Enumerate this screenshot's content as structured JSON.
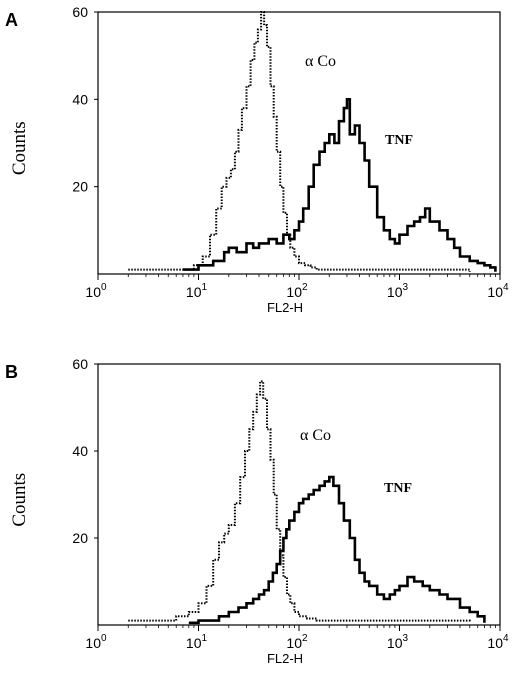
{
  "chart_data": [
    {
      "type": "line",
      "panel_label": "A",
      "xlabel": "FL2-H",
      "ylabel": "Counts",
      "x_scale": "log",
      "xlim": [
        1,
        10000
      ],
      "ylim": [
        0,
        60
      ],
      "x_ticks": [
        {
          "base": "10",
          "exp": "0"
        },
        {
          "base": "10",
          "exp": "1"
        },
        {
          "base": "10",
          "exp": "2"
        },
        {
          "base": "10",
          "exp": "3"
        },
        {
          "base": "10",
          "exp": "4"
        }
      ],
      "y_ticks": [
        "60",
        "40",
        "20"
      ],
      "y_tick_values": [
        60,
        40,
        20
      ],
      "annotations": [
        {
          "text": "α Co",
          "series": "control"
        },
        {
          "text": "TNF",
          "series": "tnf"
        }
      ],
      "series": [
        {
          "key": "control",
          "style": "dotted",
          "x": [
            2,
            3,
            5,
            7,
            9,
            11,
            13,
            15,
            17,
            19,
            21,
            23,
            25,
            27,
            30,
            33,
            36,
            39,
            42,
            45,
            48,
            52,
            56,
            60,
            65,
            70,
            76,
            82,
            90,
            100,
            115,
            130,
            150,
            200,
            300,
            500,
            1000,
            2000,
            5000
          ],
          "y": [
            1,
            1,
            1,
            1,
            2,
            4,
            9,
            15,
            20,
            22,
            24,
            28,
            33,
            38,
            43,
            49,
            53,
            56,
            60,
            57,
            52,
            43,
            36,
            28,
            20,
            14,
            9,
            6,
            4,
            2.5,
            2,
            1.5,
            1,
            1,
            1,
            1,
            1,
            1,
            0.5
          ]
        },
        {
          "key": "tnf",
          "style": "solid",
          "x": [
            7,
            10,
            14,
            18,
            20,
            24,
            30,
            35,
            40,
            50,
            60,
            70,
            80,
            90,
            100,
            110,
            125,
            140,
            160,
            180,
            200,
            225,
            250,
            280,
            300,
            320,
            360,
            400,
            450,
            500,
            600,
            700,
            800,
            900,
            1000,
            1200,
            1400,
            1600,
            1800,
            2000,
            2500,
            3000,
            3500,
            4000,
            5000,
            6000,
            7000,
            8000,
            9000
          ],
          "y": [
            1,
            2,
            3,
            5,
            6,
            5,
            7,
            6,
            7,
            8,
            7,
            9,
            8,
            10,
            12,
            15,
            20,
            25,
            28,
            30,
            32,
            30,
            35,
            38,
            40,
            32,
            34,
            30,
            26,
            20,
            13,
            10,
            8,
            7,
            9,
            11,
            12,
            13,
            15,
            12,
            10,
            8,
            6,
            4,
            3,
            2.5,
            2,
            1.5,
            0.5
          ]
        }
      ]
    },
    {
      "type": "line",
      "panel_label": "B",
      "xlabel": "FL2-H",
      "ylabel": "Counts",
      "x_scale": "log",
      "xlim": [
        1,
        10000
      ],
      "ylim": [
        0,
        60
      ],
      "x_ticks": [
        {
          "base": "10",
          "exp": "0"
        },
        {
          "base": "10",
          "exp": "1"
        },
        {
          "base": "10",
          "exp": "2"
        },
        {
          "base": "10",
          "exp": "3"
        },
        {
          "base": "10",
          "exp": "4"
        }
      ],
      "y_ticks": [
        "60",
        "40",
        "20"
      ],
      "y_tick_values": [
        60,
        40,
        20
      ],
      "annotations": [
        {
          "text": "α Co",
          "series": "control"
        },
        {
          "text": "TNF",
          "series": "tnf"
        }
      ],
      "series": [
        {
          "key": "control",
          "style": "dotted",
          "x": [
            2,
            4,
            6,
            8,
            10,
            12,
            14,
            16,
            18,
            20,
            23,
            26,
            29,
            32,
            35,
            38,
            41,
            44,
            48,
            52,
            56,
            60,
            65,
            70,
            76,
            82,
            90,
            100,
            120,
            150,
            200,
            300,
            500,
            1000,
            2000,
            5000
          ],
          "y": [
            1,
            1,
            2,
            3,
            5,
            9,
            15,
            19,
            21,
            23,
            28,
            34,
            40,
            45,
            49,
            53,
            56,
            52,
            45,
            38,
            30,
            22,
            16,
            11,
            7,
            5,
            3,
            2,
            1.5,
            1,
            1,
            1,
            1,
            1,
            1,
            0.5
          ]
        },
        {
          "key": "tnf",
          "style": "solid",
          "x": [
            8,
            10,
            13,
            16,
            20,
            25,
            30,
            35,
            40,
            45,
            50,
            55,
            60,
            65,
            70,
            75,
            80,
            90,
            100,
            110,
            125,
            140,
            160,
            180,
            200,
            220,
            250,
            280,
            320,
            360,
            400,
            450,
            500,
            600,
            700,
            800,
            900,
            1000,
            1200,
            1400,
            1700,
            2000,
            2500,
            3000,
            4000,
            5000,
            6000,
            7000
          ],
          "y": [
            0.5,
            1,
            1,
            2,
            3,
            4,
            5,
            6,
            7,
            8,
            10,
            12,
            14,
            17,
            20,
            22,
            24,
            26,
            28,
            29,
            30,
            31,
            32,
            33,
            34,
            32,
            28,
            24,
            20,
            15,
            12,
            10,
            9,
            7,
            6,
            7,
            8,
            9,
            11,
            10,
            9,
            8,
            7,
            6,
            4,
            3,
            2,
            0.5
          ]
        }
      ]
    }
  ]
}
